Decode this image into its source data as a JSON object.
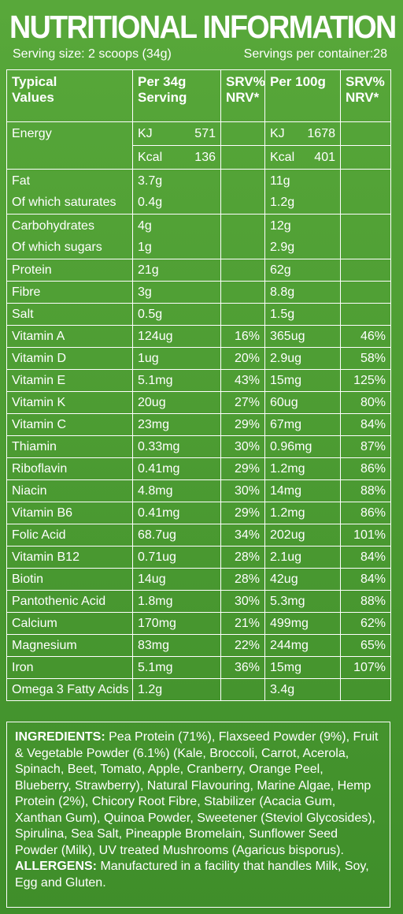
{
  "title": "NUTRITIONAL INFORMATION",
  "serving_size": "Serving size: 2 scoops (34g)",
  "servings_per_container": "Servings per container:28",
  "headers": {
    "col1_line1": "Typical",
    "col1_line2": "Values",
    "col2_line1": "Per 34g",
    "col2_line2": "Serving",
    "col3_line1": "SRV%",
    "col3_line2": "NRV*",
    "col4_line1": "Per 100g",
    "col5_line1": "SRV%",
    "col5_line2": "NRV*"
  },
  "energy": {
    "label": "Energy",
    "kj_unit": "KJ",
    "kj_serving": "571",
    "kj_100g": "1678",
    "kcal_unit": "Kcal",
    "kcal_serving": "136",
    "kcal_100g": "401"
  },
  "fat": {
    "label": "Fat",
    "serving": "3.7g",
    "per100": "11g",
    "sub_label": "Of which saturates",
    "sub_serving": "0.4g",
    "sub_per100": "1.2g"
  },
  "carbs": {
    "label": "Carbohydrates",
    "serving": "4g",
    "per100": "12g",
    "sub_label": "Of which sugars",
    "sub_serving": "1g",
    "sub_per100": "2.9g"
  },
  "rows": [
    {
      "name": "Protein",
      "serving": "21g",
      "nrv_serving": "",
      "per100": "62g",
      "nrv_100": ""
    },
    {
      "name": "Fibre",
      "serving": "3g",
      "nrv_serving": "",
      "per100": "8.8g",
      "nrv_100": ""
    },
    {
      "name": "Salt",
      "serving": "0.5g",
      "nrv_serving": "",
      "per100": "1.5g",
      "nrv_100": ""
    },
    {
      "name": "Vitamin A",
      "serving": "124ug",
      "nrv_serving": "16%",
      "per100": "365ug",
      "nrv_100": "46%"
    },
    {
      "name": "Vitamin D",
      "serving": "1ug",
      "nrv_serving": "20%",
      "per100": "2.9ug",
      "nrv_100": "58%"
    },
    {
      "name": "Vitamin E",
      "serving": "5.1mg",
      "nrv_serving": "43%",
      "per100": "15mg",
      "nrv_100": "125%"
    },
    {
      "name": "Vitamin K",
      "serving": "20ug",
      "nrv_serving": "27%",
      "per100": "60ug",
      "nrv_100": "80%"
    },
    {
      "name": "Vitamin C",
      "serving": "23mg",
      "nrv_serving": "29%",
      "per100": "67mg",
      "nrv_100": "84%"
    },
    {
      "name": "Thiamin",
      "serving": "0.33mg",
      "nrv_serving": "30%",
      "per100": "0.96mg",
      "nrv_100": "87%"
    },
    {
      "name": "Riboflavin",
      "serving": "0.41mg",
      "nrv_serving": "29%",
      "per100": "1.2mg",
      "nrv_100": "86%"
    },
    {
      "name": "Niacin",
      "serving": "4.8mg",
      "nrv_serving": "30%",
      "per100": "14mg",
      "nrv_100": "88%"
    },
    {
      "name": "Vitamin B6",
      "serving": "0.41mg",
      "nrv_serving": "29%",
      "per100": "1.2mg",
      "nrv_100": "86%"
    },
    {
      "name": "Folic Acid",
      "serving": "68.7ug",
      "nrv_serving": "34%",
      "per100": "202ug",
      "nrv_100": "101%"
    },
    {
      "name": "Vitamin B12",
      "serving": "0.71ug",
      "nrv_serving": "28%",
      "per100": "2.1ug",
      "nrv_100": "84%"
    },
    {
      "name": "Biotin",
      "serving": "14ug",
      "nrv_serving": "28%",
      "per100": "42ug",
      "nrv_100": "84%"
    },
    {
      "name": "Pantothenic Acid",
      "serving": "1.8mg",
      "nrv_serving": "30%",
      "per100": "5.3mg",
      "nrv_100": "88%"
    },
    {
      "name": "Calcium",
      "serving": "170mg",
      "nrv_serving": "21%",
      "per100": "499mg",
      "nrv_100": "62%"
    },
    {
      "name": "Magnesium",
      "serving": "83mg",
      "nrv_serving": "22%",
      "per100": "244mg",
      "nrv_100": "65%"
    },
    {
      "name": "Iron",
      "serving": "5.1mg",
      "nrv_serving": "36%",
      "per100": "15mg",
      "nrv_100": "107%"
    },
    {
      "name": "Omega 3 Fatty Acids",
      "serving": "1.2g",
      "nrv_serving": "",
      "per100": "3.4g",
      "nrv_100": ""
    }
  ],
  "ingredients_label": "INGREDIENTS:",
  "ingredients_text": " Pea Protein (71%), Flaxseed Powder (9%), Fruit & Vegetable Powder (6.1%) (Kale, Broccoli, Carrot, Acerola, Spinach, Beet, Tomato, Apple, Cranberry, Orange Peel, Blueberry, Strawberry), Natural Flavouring, Marine Algae, Hemp Protein (2%), Chicory Root Fibre, Stabilizer (Acacia Gum, Xanthan Gum), Quinoa Powder, Sweetener (Steviol Glycosides), Spirulina, Sea Salt, Pineapple Bromelain, Sunflower Seed Powder (Milk), UV treated Mushrooms (Agaricus bisporus).",
  "allergens_label": "ALLERGENS:",
  "allergens_text": " Manufactured in a facility that handles Milk, Soy, Egg and Gluten."
}
